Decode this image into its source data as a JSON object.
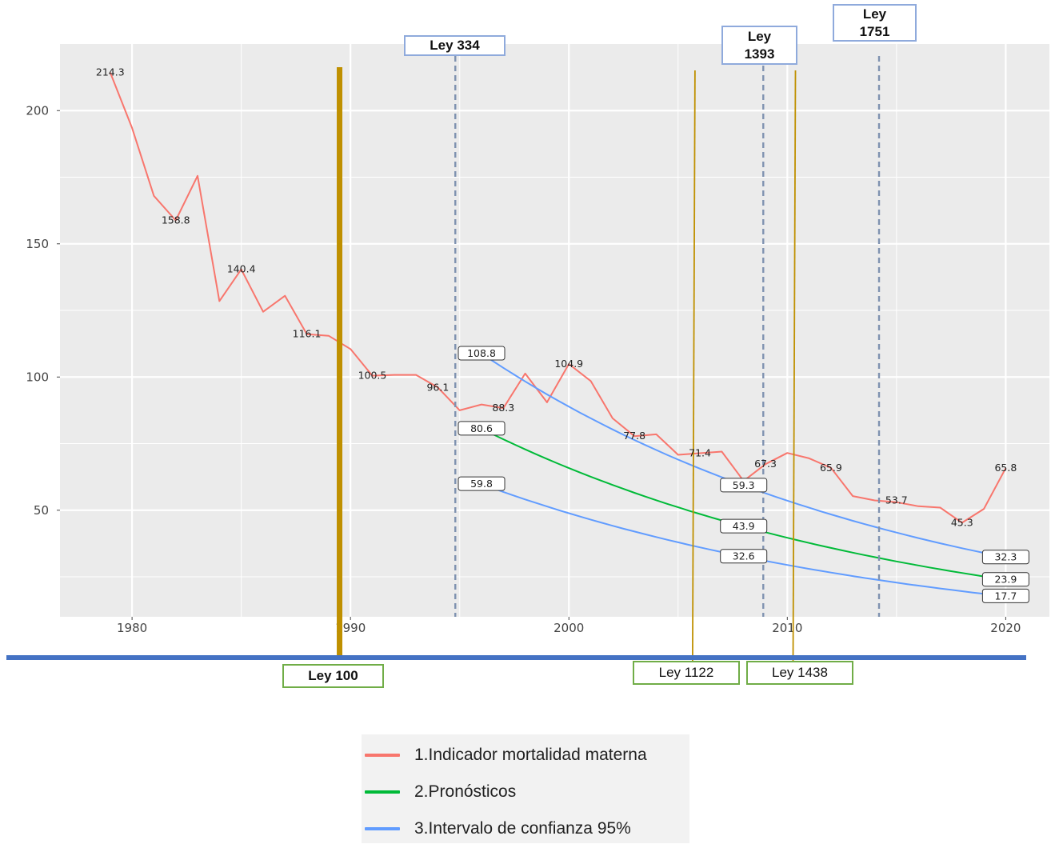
{
  "chart_data": {
    "type": "line",
    "xlim": [
      1976.7,
      2022
    ],
    "ylim": [
      10,
      225
    ],
    "x_ticks": [
      1980,
      1990,
      2000,
      2010,
      2020
    ],
    "y_ticks": [
      50,
      100,
      150,
      200
    ],
    "grid": true,
    "legend_position": "bottom",
    "series": [
      {
        "name": "1.Indicador mortalidad materna",
        "color": "#f8766d",
        "x": [
          1979,
          1980,
          1981,
          1982,
          1983,
          1984,
          1985,
          1986,
          1987,
          1988,
          1989,
          1990,
          1991,
          1992,
          1993,
          1994,
          1995,
          1996,
          1997,
          1998,
          1999,
          2000,
          2001,
          2002,
          2003,
          2004,
          2005,
          2006,
          2007,
          2008,
          2009,
          2010,
          2011,
          2012,
          2013,
          2014,
          2015,
          2016,
          2017,
          2018,
          2019,
          2020
        ],
        "y": [
          214.3,
          193.5,
          168,
          158.8,
          175.5,
          128.5,
          140.4,
          124.5,
          130.5,
          116.1,
          115.5,
          110.5,
          100.5,
          100.8,
          100.8,
          96.1,
          87.5,
          89.7,
          88.3,
          101.3,
          90.5,
          104.9,
          98.5,
          84.5,
          77.8,
          78.5,
          70.8,
          71.4,
          72,
          61,
          67.3,
          71.5,
          69.5,
          65.9,
          55.3,
          53.7,
          53,
          51.5,
          51,
          45.3,
          50.5,
          65.8
        ]
      },
      {
        "name": "2.Pronósticos",
        "color": "#00ba38",
        "x": [
          1996,
          2008,
          2020
        ],
        "y": [
          80.6,
          43.9,
          23.9
        ]
      },
      {
        "name": "3.Intervalo de confianza 95%",
        "color": "#619cff",
        "band": "upper",
        "x": [
          1996,
          2008,
          2020
        ],
        "y": [
          108.8,
          59.3,
          32.3
        ]
      },
      {
        "name": "3.Intervalo de confianza 95%",
        "color": "#619cff",
        "band": "lower",
        "x": [
          1996,
          2008,
          2020
        ],
        "y": [
          59.8,
          32.6,
          17.7
        ]
      }
    ],
    "point_labels": [
      {
        "x": 1979,
        "y": 214.3,
        "text": "214.3"
      },
      {
        "x": 1982,
        "y": 158.8,
        "text": "158.8"
      },
      {
        "x": 1985,
        "y": 140.4,
        "text": "140.4"
      },
      {
        "x": 1988,
        "y": 116.1,
        "text": "116.1"
      },
      {
        "x": 1991,
        "y": 100.5,
        "text": "100.5"
      },
      {
        "x": 1994,
        "y": 96.1,
        "text": "96.1"
      },
      {
        "x": 1997,
        "y": 88.3,
        "text": "88.3"
      },
      {
        "x": 2000,
        "y": 104.9,
        "text": "104.9"
      },
      {
        "x": 2003,
        "y": 77.8,
        "text": "77.8"
      },
      {
        "x": 2006,
        "y": 71.4,
        "text": "71.4"
      },
      {
        "x": 2009,
        "y": 67.3,
        "text": "67.3"
      },
      {
        "x": 2012,
        "y": 65.9,
        "text": "65.9"
      },
      {
        "x": 2015,
        "y": 53.7,
        "text": "53.7"
      },
      {
        "x": 2018,
        "y": 45.3,
        "text": "45.3"
      },
      {
        "x": 2020,
        "y": 65.8,
        "text": "65.8"
      }
    ],
    "boxed_labels": [
      {
        "x": 1996,
        "y": 108.8,
        "text": "108.8"
      },
      {
        "x": 1996,
        "y": 80.6,
        "text": "80.6"
      },
      {
        "x": 1996,
        "y": 59.8,
        "text": "59.8"
      },
      {
        "x": 2008,
        "y": 59.3,
        "text": "59.3"
      },
      {
        "x": 2008,
        "y": 43.9,
        "text": "43.9"
      },
      {
        "x": 2008,
        "y": 32.6,
        "text": "32.6"
      },
      {
        "x": 2020,
        "y": 32.3,
        "text": "32.3"
      },
      {
        "x": 2020,
        "y": 23.9,
        "text": "23.9"
      },
      {
        "x": 2020,
        "y": 17.7,
        "text": "17.7"
      }
    ],
    "law_lines": [
      {
        "name": "Ley 100",
        "x": 1989.5,
        "style": "thick-gold"
      },
      {
        "name": "Ley 334",
        "x": 1994.8,
        "style": "dashed-blue"
      },
      {
        "name": "Ley 1122",
        "x": 2005.7,
        "style": "thin-gold"
      },
      {
        "name": "Ley 1393",
        "x": 2008.9,
        "style": "dashed-blue"
      },
      {
        "name": "Ley 1438",
        "x": 2010.3,
        "style": "thin-gold"
      },
      {
        "name": "Ley 1751",
        "x": 2014.2,
        "style": "dashed-blue"
      }
    ]
  },
  "law_labels": {
    "ley_334": "Ley 334",
    "ley_1393_line1": "Ley",
    "ley_1393_line2": "1393",
    "ley_1751_line1": "Ley",
    "ley_1751_line2": "1751",
    "ley_100": "Ley 100",
    "ley_1122": "Ley 1122",
    "ley_1438": "Ley 1438"
  },
  "legend": {
    "items": [
      {
        "label": "1.Indicador mortalidad materna",
        "color": "#f8766d"
      },
      {
        "label": "2.Pronósticos",
        "color": "#00ba38"
      },
      {
        "label": "3.Intervalo de confianza 95%",
        "color": "#619cff"
      }
    ]
  },
  "colors": {
    "panel": "#ebebeb",
    "grid": "#ffffff",
    "law_gold": "#bf9000",
    "law_dashed": "#7f92b0",
    "timeline": "#4472c4"
  }
}
